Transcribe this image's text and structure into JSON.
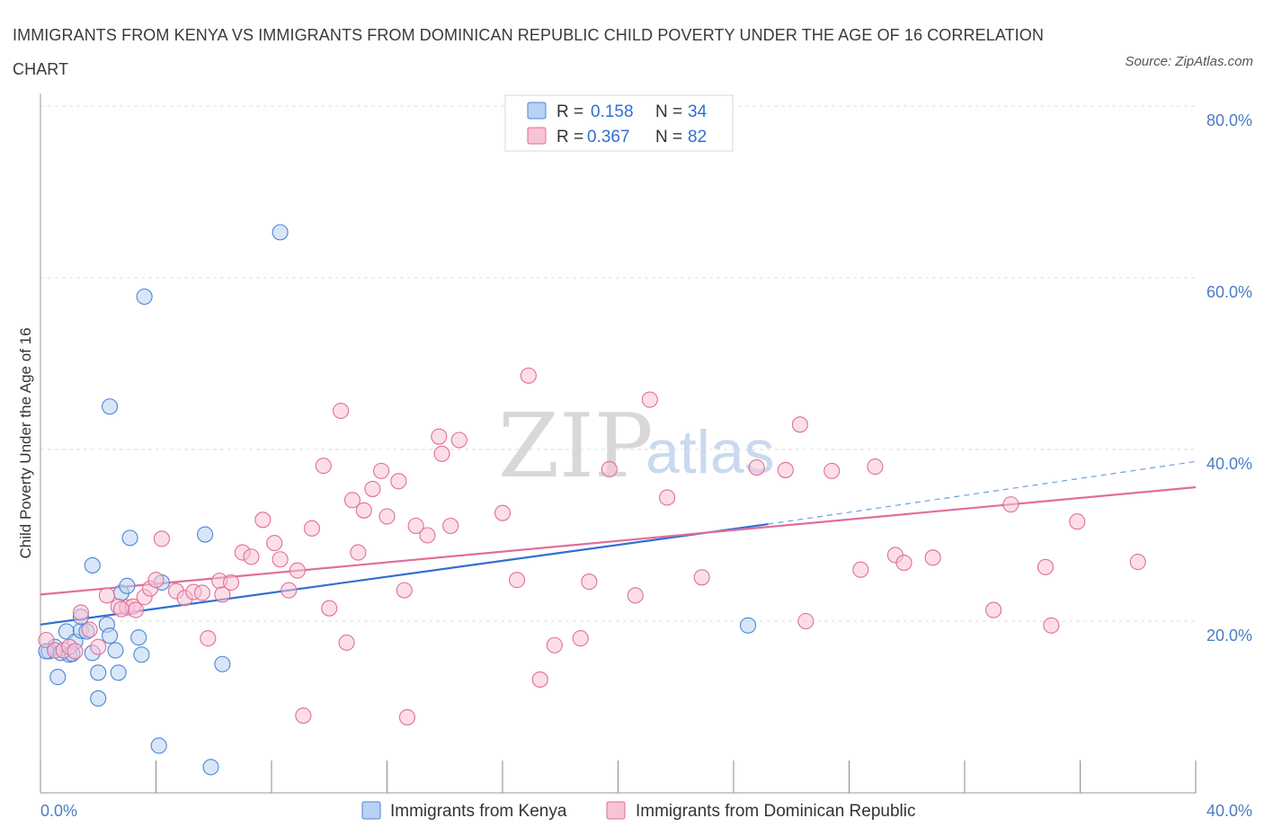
{
  "title": "IMMIGRANTS FROM KENYA VS IMMIGRANTS FROM DOMINICAN REPUBLIC CHILD POVERTY UNDER THE AGE OF 16 CORRELATION CHART",
  "source": "Source: ZipAtlas.com",
  "watermark": {
    "zip": "ZIP",
    "atlas": "atlas"
  },
  "colors": {
    "kenya": "#4a85d8",
    "dominican": "#e06e9a",
    "kenya_fill": "#b9d1f3",
    "dominican_fill": "#f7c3d5",
    "axis_label": "#4a7cc4"
  },
  "legend": {
    "kenya": {
      "r_label": "R =",
      "r_value": "0.158",
      "n_label": "N =",
      "n_value": "34"
    },
    "dominican": {
      "r_label": "R =",
      "r_value": "0.367",
      "n_label": "N =",
      "n_value": "82"
    }
  },
  "bottom_legend": [
    "Immigrants from Kenya",
    "Immigrants from Dominican Republic"
  ],
  "chart_data": {
    "type": "scatter",
    "title": "IMMIGRANTS FROM KENYA VS IMMIGRANTS FROM DOMINICAN REPUBLIC CHILD POVERTY UNDER THE AGE OF 16 CORRELATION CHART",
    "xlabel": "",
    "ylabel": "Child Poverty Under the Age of 16",
    "xlim": [
      0,
      40
    ],
    "ylim": [
      0,
      80
    ],
    "x_tick_labels": [
      "0.0%",
      "40.0%"
    ],
    "y_tick_labels": [
      "20.0%",
      "40.0%",
      "60.0%",
      "80.0%"
    ],
    "y_ticks": [
      20,
      40,
      60,
      80
    ],
    "grid": true,
    "series": [
      {
        "name": "Immigrants from Kenya",
        "points": [
          [
            0.3,
            16.5
          ],
          [
            0.5,
            17.0
          ],
          [
            0.7,
            16.3
          ],
          [
            0.9,
            18.8
          ],
          [
            1.0,
            16.1
          ],
          [
            1.2,
            17.6
          ],
          [
            1.4,
            18.9
          ],
          [
            1.4,
            20.5
          ],
          [
            1.6,
            18.8
          ],
          [
            1.8,
            26.5
          ],
          [
            1.8,
            16.3
          ],
          [
            2.0,
            11.0
          ],
          [
            2.3,
            19.6
          ],
          [
            2.4,
            18.3
          ],
          [
            2.4,
            45.0
          ],
          [
            2.6,
            16.6
          ],
          [
            2.7,
            14.0
          ],
          [
            2.8,
            23.3
          ],
          [
            3.0,
            24.1
          ],
          [
            3.1,
            29.7
          ],
          [
            3.4,
            18.1
          ],
          [
            3.5,
            16.1
          ],
          [
            3.6,
            57.8
          ],
          [
            4.1,
            5.5
          ],
          [
            4.2,
            24.5
          ],
          [
            5.7,
            30.1
          ],
          [
            5.9,
            3.0
          ],
          [
            6.3,
            15.0
          ],
          [
            8.3,
            65.3
          ],
          [
            0.6,
            13.5
          ],
          [
            0.2,
            16.5
          ],
          [
            2.0,
            14.0
          ],
          [
            1.1,
            16.2
          ],
          [
            24.5,
            19.5
          ]
        ],
        "trend": {
          "x": [
            0,
            25.2
          ],
          "y": [
            19.6,
            31.3
          ],
          "dashed_to": [
            40,
            38.6
          ]
        }
      },
      {
        "name": "Immigrants from Dominican Republic",
        "points": [
          [
            0.2,
            17.8
          ],
          [
            0.5,
            16.6
          ],
          [
            0.8,
            16.6
          ],
          [
            1.0,
            17.0
          ],
          [
            1.2,
            16.5
          ],
          [
            1.4,
            21.0
          ],
          [
            1.7,
            19.0
          ],
          [
            2.0,
            17.0
          ],
          [
            2.3,
            23.0
          ],
          [
            2.7,
            21.7
          ],
          [
            3.0,
            21.6
          ],
          [
            3.2,
            21.7
          ],
          [
            3.3,
            21.3
          ],
          [
            3.6,
            22.8
          ],
          [
            3.8,
            23.8
          ],
          [
            4.0,
            24.8
          ],
          [
            4.2,
            29.6
          ],
          [
            4.7,
            23.5
          ],
          [
            5.0,
            22.7
          ],
          [
            5.3,
            23.4
          ],
          [
            5.6,
            23.3
          ],
          [
            5.8,
            18.0
          ],
          [
            6.2,
            24.7
          ],
          [
            6.3,
            23.1
          ],
          [
            6.6,
            24.5
          ],
          [
            7.0,
            28.0
          ],
          [
            7.3,
            27.5
          ],
          [
            7.7,
            31.8
          ],
          [
            8.1,
            29.1
          ],
          [
            8.3,
            27.2
          ],
          [
            8.6,
            23.6
          ],
          [
            8.9,
            25.9
          ],
          [
            9.1,
            9.0
          ],
          [
            9.4,
            30.8
          ],
          [
            9.8,
            38.1
          ],
          [
            10.0,
            21.5
          ],
          [
            10.4,
            44.5
          ],
          [
            10.6,
            17.5
          ],
          [
            10.8,
            34.1
          ],
          [
            11.0,
            28.0
          ],
          [
            11.2,
            32.9
          ],
          [
            11.5,
            35.4
          ],
          [
            11.8,
            37.5
          ],
          [
            12.0,
            32.2
          ],
          [
            12.4,
            36.3
          ],
          [
            12.6,
            23.6
          ],
          [
            12.7,
            8.8
          ],
          [
            13.0,
            31.1
          ],
          [
            13.4,
            30.0
          ],
          [
            13.8,
            41.5
          ],
          [
            13.9,
            39.5
          ],
          [
            14.2,
            31.1
          ],
          [
            14.5,
            41.1
          ],
          [
            16.0,
            32.6
          ],
          [
            16.5,
            24.8
          ],
          [
            16.9,
            48.6
          ],
          [
            17.3,
            13.2
          ],
          [
            17.8,
            17.2
          ],
          [
            18.7,
            18.0
          ],
          [
            19.0,
            24.6
          ],
          [
            19.7,
            37.7
          ],
          [
            20.6,
            23.0
          ],
          [
            21.1,
            45.8
          ],
          [
            21.7,
            34.4
          ],
          [
            22.9,
            25.1
          ],
          [
            24.8,
            37.9
          ],
          [
            25.8,
            37.6
          ],
          [
            26.3,
            42.9
          ],
          [
            26.5,
            20.0
          ],
          [
            27.4,
            37.5
          ],
          [
            28.4,
            26.0
          ],
          [
            28.9,
            38.0
          ],
          [
            29.6,
            27.7
          ],
          [
            29.9,
            26.8
          ],
          [
            30.9,
            27.4
          ],
          [
            33.0,
            21.3
          ],
          [
            33.6,
            33.6
          ],
          [
            34.8,
            26.3
          ],
          [
            35.0,
            19.5
          ],
          [
            35.9,
            31.6
          ],
          [
            38.0,
            26.9
          ],
          [
            2.8,
            21.4
          ]
        ],
        "trend": {
          "x": [
            0,
            40
          ],
          "y": [
            23.1,
            35.6
          ]
        }
      }
    ]
  }
}
